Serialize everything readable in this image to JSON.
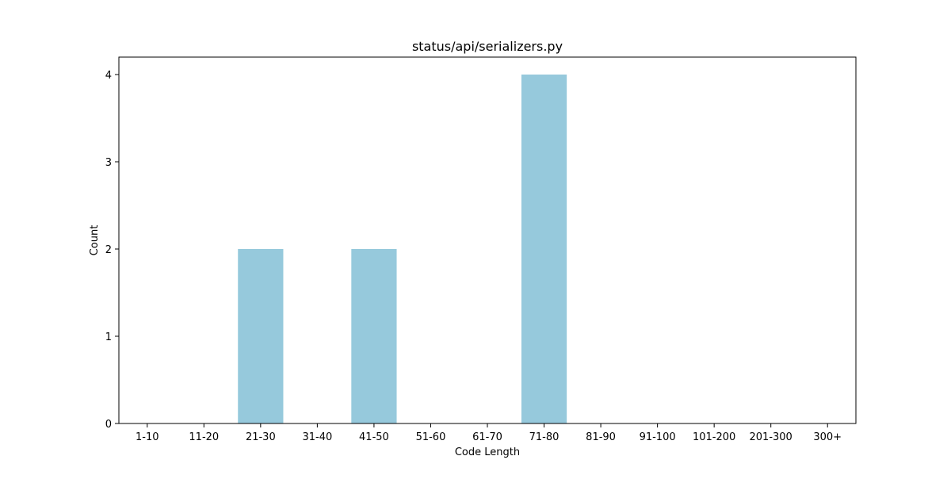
{
  "chart_data": {
    "type": "bar",
    "title": "status/api/serializers.py",
    "xlabel": "Code Length",
    "ylabel": "Count",
    "categories": [
      "1-10",
      "11-20",
      "21-30",
      "31-40",
      "41-50",
      "51-60",
      "61-70",
      "71-80",
      "81-90",
      "91-100",
      "101-200",
      "201-300",
      "300+"
    ],
    "values": [
      0,
      0,
      2,
      0,
      2,
      0,
      0,
      4,
      0,
      0,
      0,
      0,
      0
    ],
    "yticks": [
      0,
      1,
      2,
      3,
      4
    ],
    "ylim": [
      0,
      4.2
    ],
    "bar_color": "#96c9dc",
    "grid": false,
    "legend": "none"
  }
}
